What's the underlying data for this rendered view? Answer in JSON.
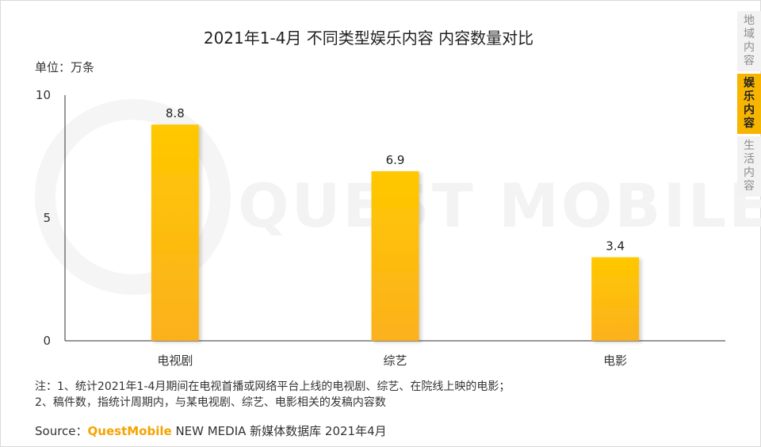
{
  "side_tabs": [
    {
      "label": "地域内容",
      "active": false
    },
    {
      "label": "娱乐内容",
      "active": true
    },
    {
      "label": "生活内容",
      "active": false
    }
  ],
  "unit": "单位：万条",
  "watermark": "QUEST MOBILE",
  "notes": {
    "line1": "注：1、统计2021年1-4月期间在电视首播或网络平台上线的电视剧、综艺、在院线上映的电影；",
    "line2": "2、稿件数，指统计周期内，与某电视剧、综艺、电影相关的发稿内容数"
  },
  "source": {
    "prefix": "Source：",
    "brand": "QuestMobile",
    "suffix": " NEW MEDIA 新媒体数据库 2021年4月"
  },
  "colors": {
    "bar_top": "#ffc800",
    "bar_bottom": "#fbb11d",
    "accent": "#f7b500"
  },
  "chart_data": {
    "type": "bar",
    "title": "2021年1-4月 不同类型娱乐内容 内容数量对比",
    "categories": [
      "电视剧",
      "综艺",
      "电影"
    ],
    "values": [
      8.8,
      6.9,
      3.4
    ],
    "data_labels": [
      "8.8",
      "6.9",
      "3.4"
    ],
    "ylim": [
      0,
      10
    ],
    "yticks": [
      0,
      5,
      10
    ],
    "ylabel": "单位：万条",
    "xlabel": "",
    "grid": false,
    "legend": "none"
  }
}
